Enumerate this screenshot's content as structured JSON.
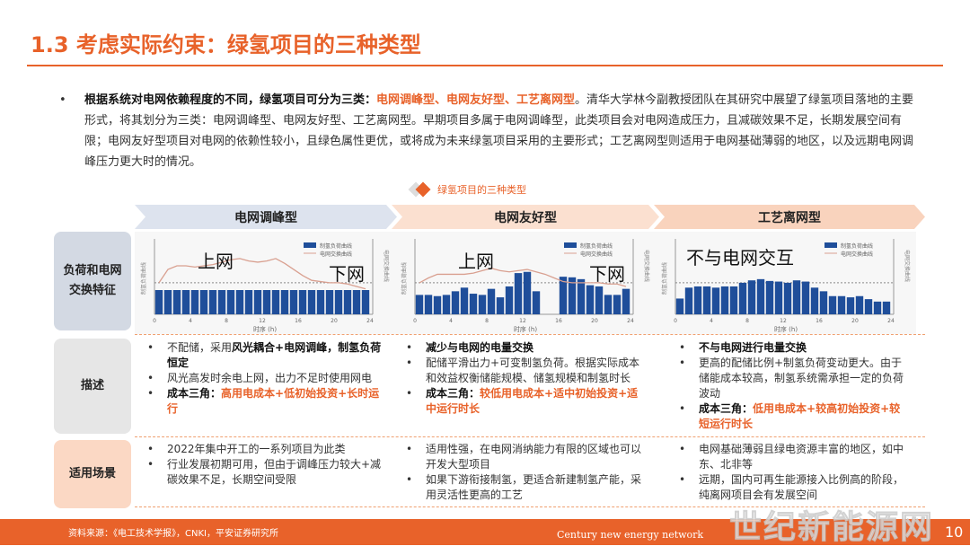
{
  "title": "1.3 考虑实际约束：绿氢项目的三种类型",
  "intro": {
    "bold": "根据系统对电网依赖程度的不同，绿氢项目可分为三类：",
    "highlight": "电网调峰型、电网友好型、工艺离网型",
    "rest": "。清华大学林今副教授团队在其研究中展望了绿氢项目落地的主要形式，将其划分为三类：电网调峰型、电网友好型、工艺离网型。早期项目多属于电网调峰型，此类项目会对电网造成压力，且减碳效果不足，长期发展空间有限；电网友好型项目对电网的依赖性较小，且绿色属性更优，或将成为未来绿氢项目采用的主要形式；工艺离网型则适用于电网基础薄弱的地区，以及远期电网调峰压力更大时的情况。"
  },
  "figure_title": "绿氢项目的三种类型",
  "columns": [
    "电网调峰型",
    "电网友好型",
    "工艺离网型"
  ],
  "row_labels": [
    "负荷和电网交换特征",
    "描述",
    "适用场景"
  ],
  "colors": {
    "accent": "#e8622a",
    "bar": "#1f4e9a",
    "line": "#d9a090"
  },
  "charts": [
    {
      "overlay": [
        "上网",
        "下网"
      ],
      "legend": [
        "制氢负荷曲线",
        "电网交换曲线"
      ],
      "ylabel_left": "制氢负荷曲线",
      "ylabel_right": "电网交换曲线",
      "xlabel": "时序 (h)",
      "xticks": [
        0,
        4,
        8,
        12,
        16,
        20,
        24
      ],
      "bars": [
        2,
        2,
        2,
        2,
        2,
        2,
        2,
        2,
        2,
        2,
        2,
        2,
        2,
        2,
        2,
        2,
        2,
        2,
        2,
        2,
        2,
        2,
        2,
        2
      ],
      "line": [
        2.6,
        3.7,
        4.0,
        4.0,
        3.9,
        4.0,
        4.1,
        4.3,
        4.5,
        4.6,
        4.4,
        4.3,
        4.4,
        4.6,
        4.2,
        3.7,
        3.2,
        2.8,
        2.7,
        2.6,
        2.6,
        2.5,
        2.3,
        2.1
      ]
    },
    {
      "overlay": [
        "上网",
        "下网"
      ],
      "legend": [
        "制氢负荷曲线",
        "电网交换曲线"
      ],
      "ylabel_left": "制氢负荷曲线",
      "ylabel_right": "电网交换曲线",
      "xlabel": "时序 (h)",
      "xticks": [
        0,
        4,
        8,
        12,
        16,
        20,
        24
      ],
      "bars": [
        1.6,
        1.6,
        1.5,
        1.6,
        1.9,
        2.2,
        1.7,
        1.6,
        2.1,
        1.4,
        2.3,
        3.4,
        3.5,
        1.9,
        0,
        0,
        3.1,
        3.05,
        2.9,
        2.4,
        2.3,
        1.6,
        1.6,
        2.1
      ],
      "line": [
        2.6,
        3.0,
        3.3,
        3.3,
        3.3,
        3.3,
        3.4,
        3.6,
        3.8,
        3.6,
        3.5,
        3.6,
        3.7,
        3.5,
        3.3,
        3.0,
        2.7,
        2.6,
        2.6,
        2.6,
        2.6,
        2.5,
        2.5,
        2.3
      ]
    },
    {
      "overlay": [
        "不与电网交互"
      ],
      "legend": [
        "制氢负荷曲线",
        "电网交换曲线"
      ],
      "ylabel_left": "制氢负荷曲线",
      "ylabel_right": "电网交换曲线",
      "xlabel": "时序 (h)",
      "xticks": [
        0,
        4,
        8,
        12,
        16,
        20,
        24
      ],
      "bars": [
        1.3,
        2.2,
        2.3,
        2.3,
        2.2,
        2.3,
        2.3,
        2.6,
        2.8,
        2.9,
        2.75,
        2.7,
        2.6,
        2.8,
        2.7,
        2.2,
        1.9,
        1.5,
        1.5,
        1.4,
        1.5,
        1.25,
        1.05,
        1.05
      ],
      "line": []
    }
  ],
  "desc": [
    [
      {
        "t": "不配储，采用",
        "b": "风光耦合+电网调峰，制氢负荷恒定"
      },
      {
        "t": "风光高发时余电上网，出力不足时使用网电"
      },
      {
        "b": "成本三角：",
        "o": "高用电成本+低初始投资+长时运行"
      }
    ],
    [
      {
        "b": "减少与电网的电量交换"
      },
      {
        "t": "配储平滑出力+可变制氢负荷。根据实际成本和效益权衡储能规模、储氢规模和制氢时长"
      },
      {
        "b": "成本三角：",
        "o": "较低用电成本+适中初始投资+适中运行时长"
      }
    ],
    [
      {
        "b": "不与电网进行电量交换"
      },
      {
        "t": "更高的配储比例+制氢负荷变动更大。由于储能成本较高，制氢系统需承担一定的负荷波动"
      },
      {
        "b": "成本三角：",
        "o": "低用电成本+较高初始投资+较短运行时长"
      }
    ]
  ],
  "scenes": [
    [
      "2022年集中开工的一系列项目为此类",
      "行业发展初期可用，但由于调峰压力较大+减碳效果不足，长期空间受限"
    ],
    [
      "适用性强，在电网消纳能力有限的区域也可以开发大型项目",
      "如果下游衔接制氢，更适合新建制氢产能，采用灵活性更高的工艺"
    ],
    [
      "电网基础薄弱且绿电资源丰富的地区，如中东、北非等",
      "远期，国内可再生能源接入比例高的阶段，纯离网项目会有发展空间"
    ]
  ],
  "footer": {
    "source": "资料来源：《电工技术学报》，CNKI，平安证券研究所",
    "page": "10",
    "watermark": "世纪新能源网",
    "watermark_en": "Century new energy network"
  }
}
